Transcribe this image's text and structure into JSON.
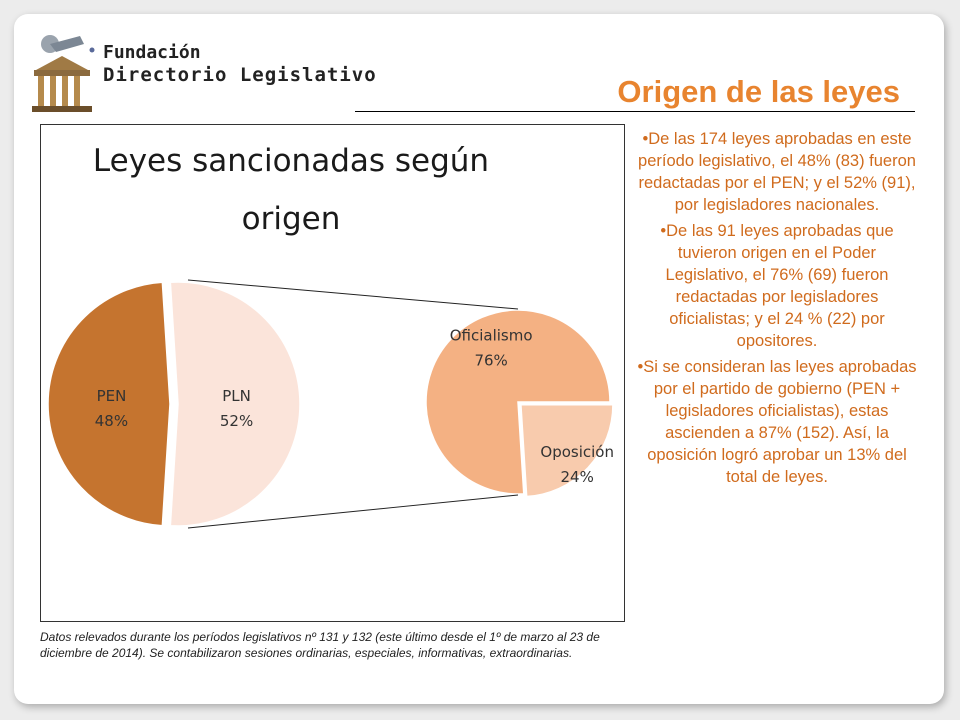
{
  "logo": {
    "line1": "Fundación",
    "line2": "Directorio Legislativo"
  },
  "title": "Origen de las leyes",
  "chart_data": [
    {
      "type": "pie",
      "title": "Leyes sancionadas según origen",
      "categories": [
        "PEN",
        "PLN"
      ],
      "values": [
        48,
        52
      ],
      "labels": [
        "48%",
        "52%"
      ],
      "colors": [
        "#c5742f",
        "#fbe4da"
      ]
    },
    {
      "type": "pie",
      "categories": [
        "Oficialismo",
        "Oposición"
      ],
      "values": [
        76,
        24
      ],
      "labels": [
        "76%",
        "24%"
      ],
      "colors": [
        "#f4b183",
        "#f8cbad"
      ]
    }
  ],
  "bullets": [
    "•De las 174 leyes aprobadas en este período legislativo, el 48% (83) fueron redactadas por el PEN; y el 52% (91), por legisladores nacionales.",
    "•De las 91 leyes aprobadas que tuvieron origen en el Poder Legislativo, el 76% (69) fueron redactadas por legisladores oficialistas; y el 24 % (22) por opositores.",
    "•Si se consideran las leyes aprobadas por el partido de gobierno (PEN + legisladores oficialistas), estas ascienden a 87% (152). Así, la oposición logró aprobar un 13% del total de leyes."
  ],
  "footnote": "Datos relevados durante los períodos legislativos nº  131 y 132 (este último desde el 1º de marzo al 23 de diciembre de 2014). Se contabilizaron sesiones ordinarias, especiales, informativas, extraordinarias."
}
